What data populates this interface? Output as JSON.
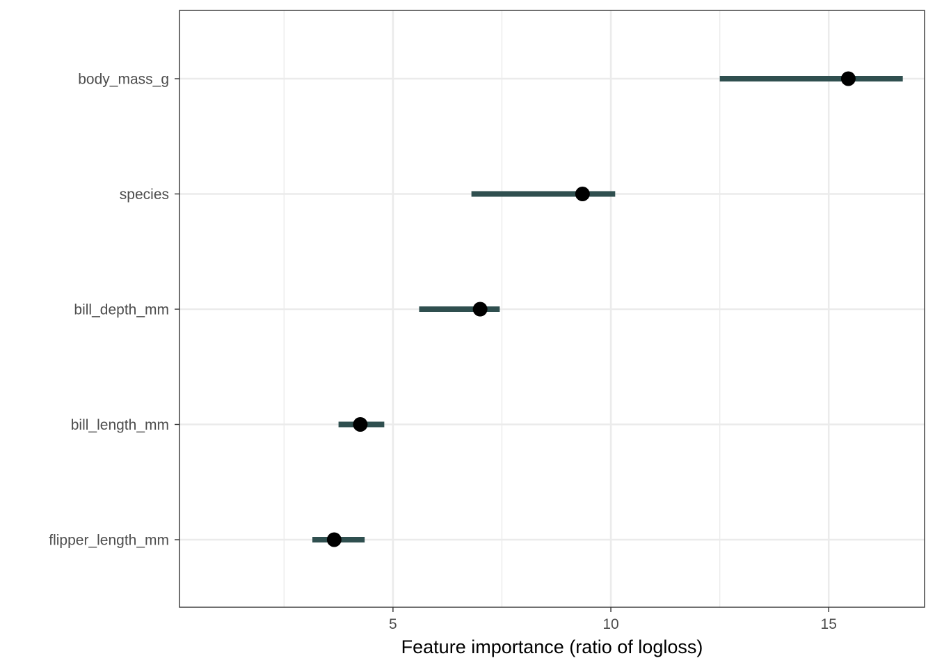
{
  "chart_data": {
    "type": "dot-interval",
    "title": "",
    "xlabel": "Feature importance (ratio of logloss)",
    "ylabel": "",
    "xlim": [
      0.1,
      17.2
    ],
    "x_ticks": [
      5,
      10,
      15
    ],
    "x_tick_labels": [
      "5",
      "10",
      "15"
    ],
    "x_minor_gridlines": [
      2.5,
      7.5,
      12.5
    ],
    "grid": true,
    "legend": "none",
    "categories": [
      "body_mass_g",
      "species",
      "bill_depth_mm",
      "bill_length_mm",
      "flipper_length_mm"
    ],
    "importance": [
      15.45,
      9.35,
      7.0,
      4.25,
      3.65
    ],
    "interval_low": [
      12.5,
      6.8,
      5.6,
      3.75,
      3.15
    ],
    "interval_high": [
      16.7,
      10.1,
      7.45,
      4.8,
      4.35
    ],
    "colors": {
      "interval": "#2f4f4f",
      "point": "#000000",
      "grid": "#ebebeb",
      "panel_border": "#333333",
      "tick_text": "#4d4d4d"
    }
  }
}
